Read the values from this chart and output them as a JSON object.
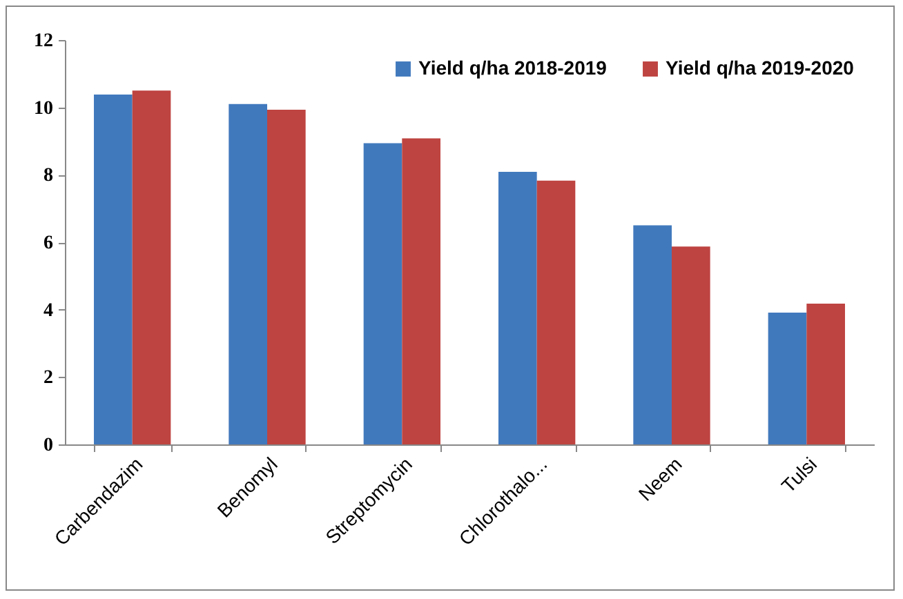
{
  "chart_data": {
    "type": "bar",
    "categories": [
      "Carbendazim",
      "Benomyl",
      "Streptomycin",
      "Chlorothalo...",
      "Neem",
      "Tulsi"
    ],
    "series": [
      {
        "name": "Yield q/ha 2018-2019",
        "color": "#4179bd",
        "values": [
          10.38,
          10.1,
          8.94,
          8.09,
          6.5,
          3.91
        ]
      },
      {
        "name": "Yield q/ha 2019-2020",
        "color": "#be4441",
        "values": [
          10.5,
          9.93,
          9.08,
          7.83,
          5.87,
          4.18
        ]
      }
    ],
    "ylim": [
      0,
      12
    ],
    "yticks": [
      0,
      2,
      4,
      6,
      8,
      10,
      12
    ],
    "grid": false,
    "legend": "top right"
  }
}
